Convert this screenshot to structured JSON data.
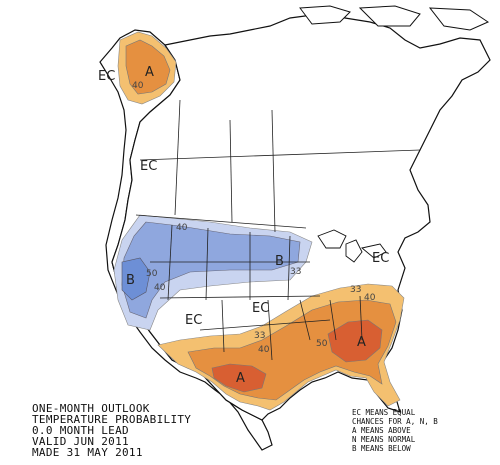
{
  "title_lines": [
    "ONE-MONTH OUTLOOK",
    "TEMPERATURE PROBABILITY",
    "0.0 MONTH LEAD",
    "VALID JUN 2011",
    "MADE 31 MAY 2011"
  ],
  "key_lines": [
    "EC MEANS EQUAL",
    "CHANCES FOR A, N, B",
    "A MEANS ABOVE",
    "N MEANS NORMAL",
    "B MEANS BELOW"
  ],
  "zone_labels": {
    "alaska_ec": "EC",
    "alaska_a": "A",
    "canada_ec": "EC",
    "west_b": "B",
    "north_b": "B",
    "east_ec": "EC",
    "central_ec": "EC",
    "southwest_ec": "EC",
    "southeast_a": "A",
    "texas_a": "A"
  },
  "contour_labels": {
    "alaska_40": "40",
    "north_40": "40",
    "west_50": "50",
    "lakes_33": "33",
    "west_40": "40",
    "central_33": "33",
    "central_40": "40",
    "se_40": "40",
    "se_50": "50",
    "se_33": "33"
  },
  "colors": {
    "above_33": "#f4c070",
    "above_40": "#e59040",
    "above_50": "#d85f32",
    "below_33": "#c9d4f0",
    "below_40": "#8fa7de",
    "below_50": "#6d8fd6",
    "boundary": "#111111"
  }
}
